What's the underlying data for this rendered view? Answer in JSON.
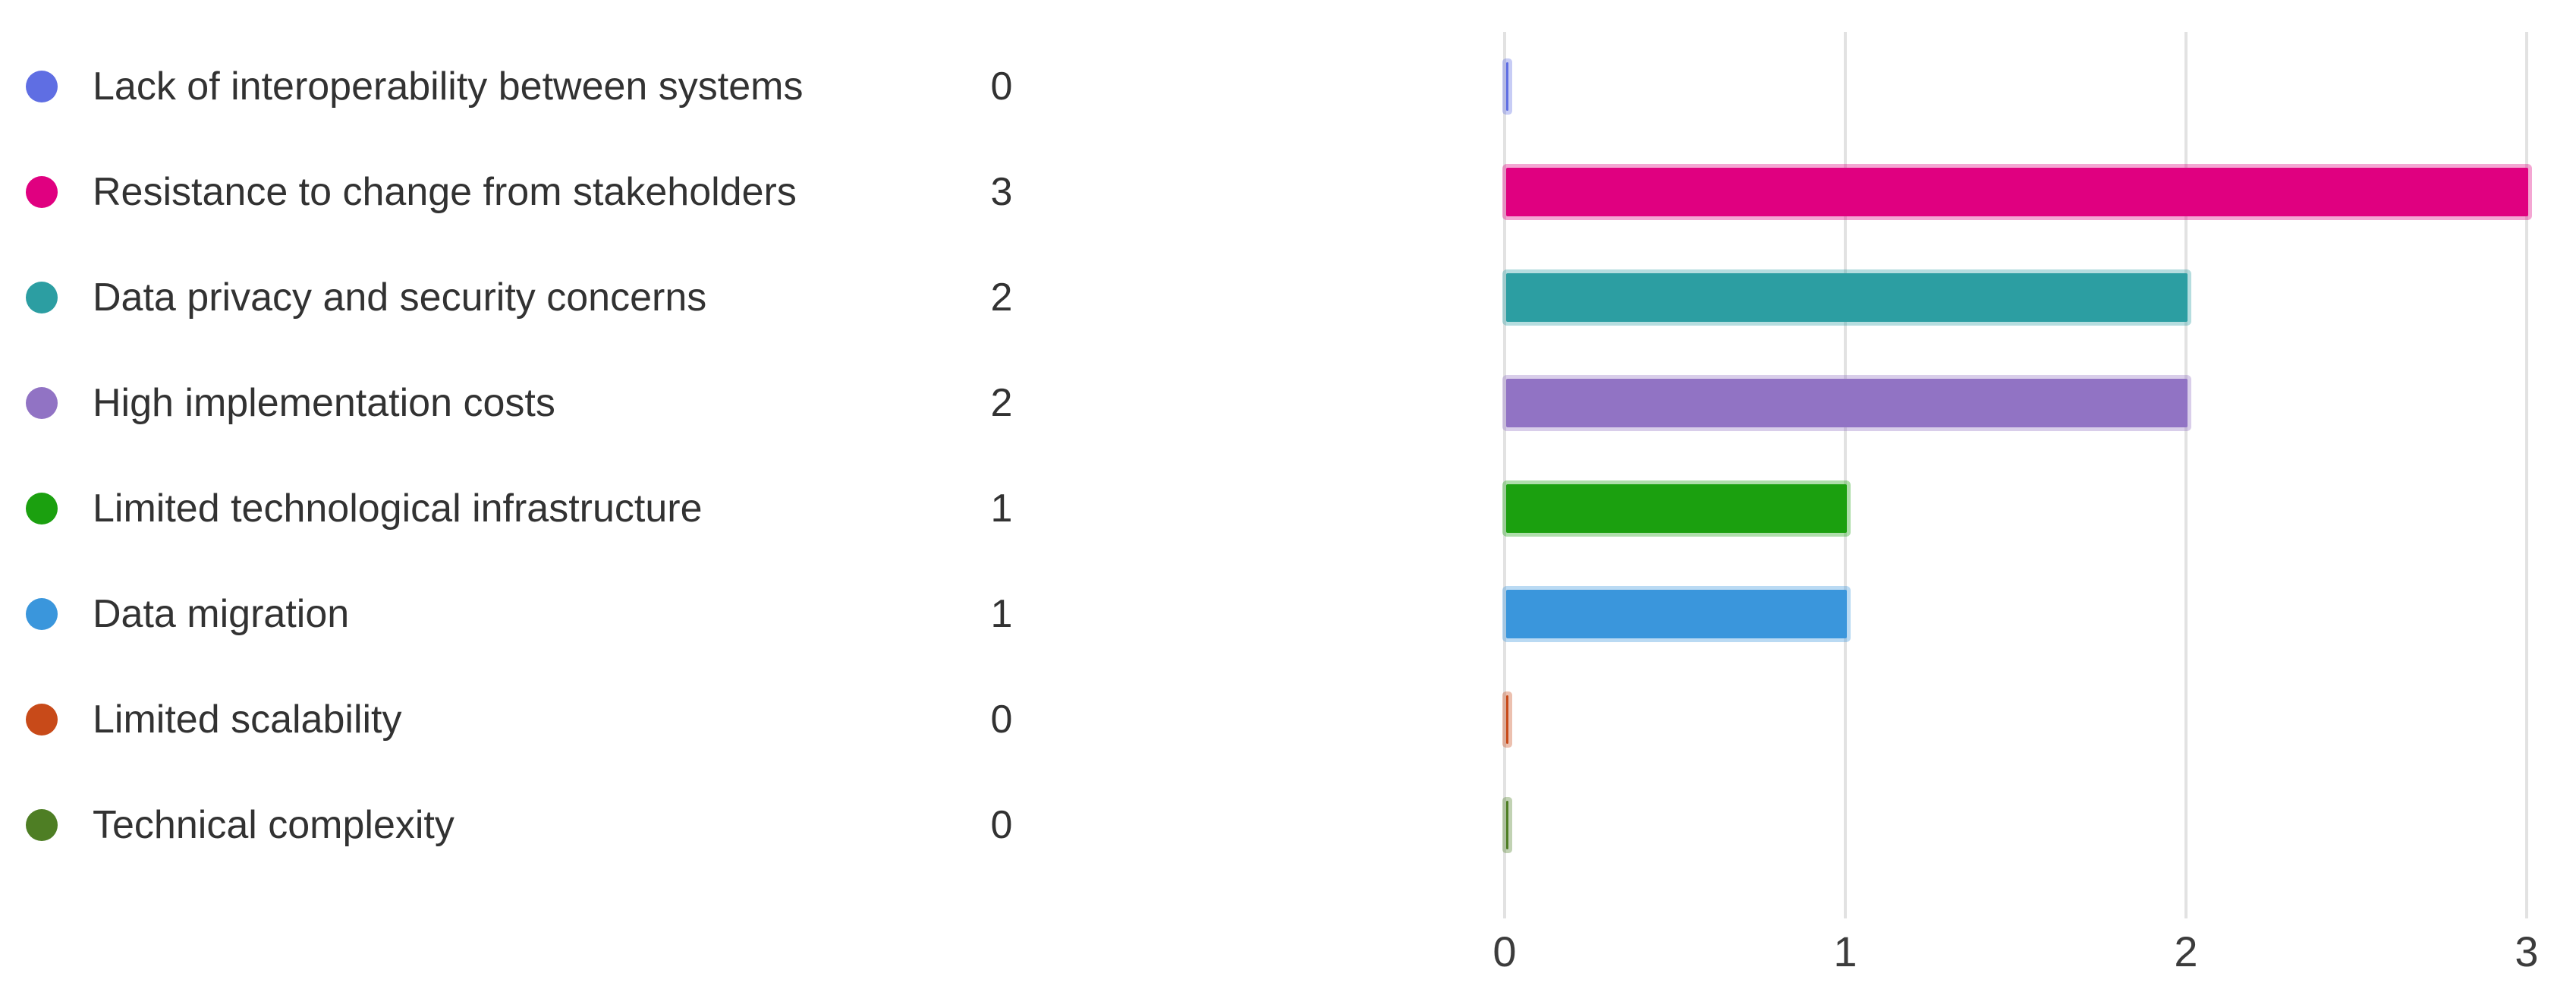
{
  "chart_data": {
    "type": "bar",
    "orientation": "horizontal",
    "title": "",
    "xlabel": "",
    "ylabel": "",
    "categories": [
      "Lack of interoperability between systems",
      "Resistance to change from stakeholders",
      "Data privacy and security concerns",
      "High implementation costs",
      "Limited technological infrastructure",
      "Data migration",
      "Limited scalability",
      "Technical complexity"
    ],
    "values": [
      0,
      3,
      2,
      2,
      1,
      1,
      0,
      0
    ],
    "colors": [
      "#5f6ee3",
      "#e00080",
      "#2c9ea2",
      "#9173c4",
      "#1ba00f",
      "#3a96dc",
      "#c84a19",
      "#4e7e24"
    ],
    "x_ticks": [
      "0",
      "1",
      "2",
      "3"
    ],
    "xlim": [
      0,
      3
    ],
    "grid": true,
    "legend_position": "left"
  },
  "colors": {
    "background": "#ffffff",
    "legend_text": "#323232",
    "axis_text": "#3c3c3c",
    "gridline": "#e2e2e2"
  }
}
